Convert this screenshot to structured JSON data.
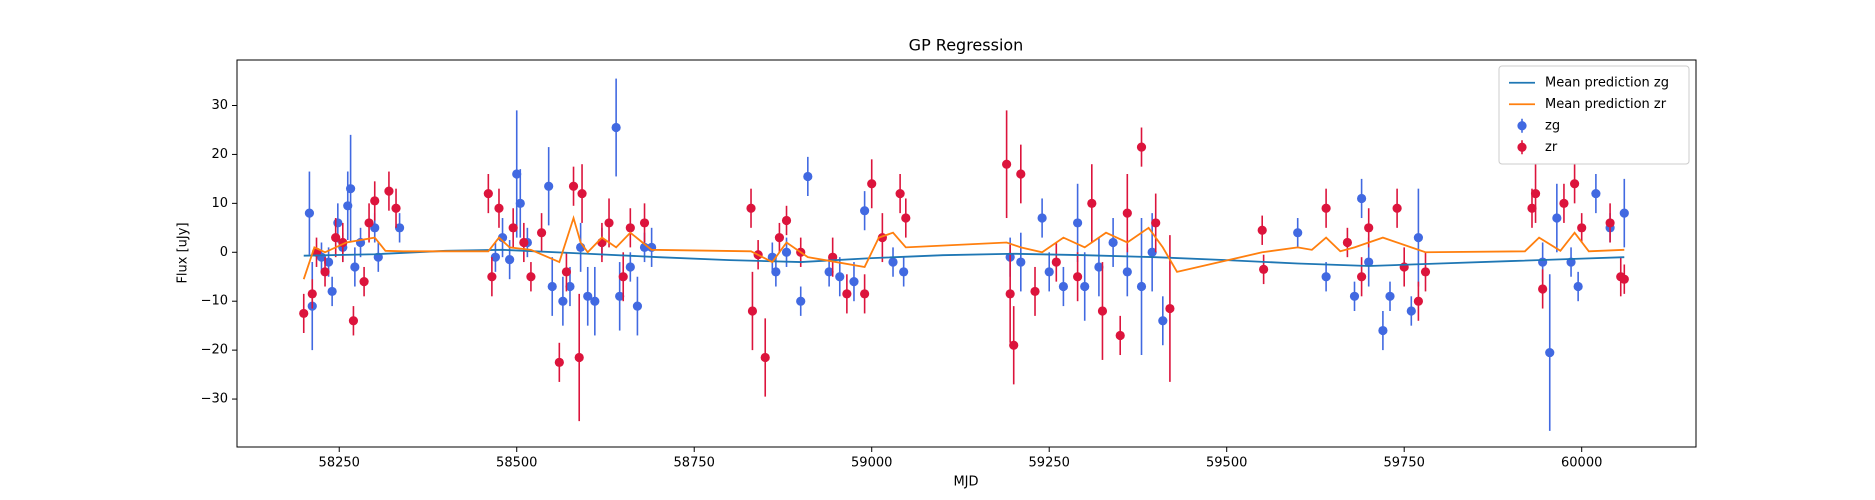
{
  "chart_data": {
    "type": "scatter",
    "title": "GP Regression",
    "x_label": "MJD",
    "y_label": "Flux [uJy]",
    "xlim": [
      58106,
      60161
    ],
    "ylim": [
      -39.8,
      39.3
    ],
    "xticks": [
      58250,
      58500,
      58750,
      59000,
      59250,
      59500,
      59750,
      60000
    ],
    "yticks": [
      {
        "value": -30,
        "label": "−30"
      },
      {
        "value": -20,
        "label": "−20"
      },
      {
        "value": -10,
        "label": "−10"
      },
      0,
      10,
      20,
      30
    ],
    "legend": "upper right",
    "series": [
      {
        "name": "Mean prediction zg",
        "kind": "line",
        "color": "#1f77b4",
        "x": [
          58200,
          58300,
          58400,
          58480,
          58600,
          58700,
          58800,
          58900,
          59000,
          59100,
          59200,
          59300,
          59400,
          59500,
          59600,
          59700,
          59800,
          59900,
          60000,
          60060
        ],
        "values": [
          -0.7,
          -0.4,
          0.3,
          0.5,
          -0.3,
          -1,
          -1.6,
          -2,
          -1.2,
          -0.6,
          -0.3,
          -0.6,
          -1,
          -1.6,
          -2.3,
          -2.8,
          -2.3,
          -1.8,
          -1.3,
          -1
        ]
      },
      {
        "name": "Mean prediction zr",
        "kind": "line",
        "color": "#ff7f0e",
        "x": [
          58200,
          58215,
          58230,
          58260,
          58300,
          58315,
          58340,
          58460,
          58475,
          58490,
          58520,
          58560,
          58580,
          58590,
          58600,
          58620,
          58640,
          58660,
          58690,
          58830,
          58860,
          58880,
          58910,
          58950,
          58990,
          59010,
          59030,
          59048,
          59190,
          59210,
          59240,
          59270,
          59300,
          59330,
          59360,
          59390,
          59410,
          59430,
          59550,
          59600,
          59620,
          59640,
          59660,
          59680,
          59720,
          59760,
          59780,
          59920,
          59940,
          59970,
          59990,
          60010,
          60060
        ],
        "values": [
          -5.5,
          1,
          0,
          2,
          3,
          0.3,
          0.2,
          0.2,
          3,
          1,
          0.5,
          -2,
          7,
          2,
          0,
          3,
          1,
          4,
          0.5,
          0.2,
          -2,
          2,
          -1,
          -2,
          -3,
          3,
          4,
          1,
          2,
          1,
          0,
          3,
          1,
          4,
          2,
          5,
          1,
          -4,
          0,
          1,
          0.5,
          3,
          0.2,
          1,
          3,
          1,
          0,
          0.2,
          3,
          0.3,
          4,
          0.2,
          0.5
        ]
      },
      {
        "name": "zg",
        "kind": "errorbar",
        "color": "#4169e1",
        "x": [
          58208,
          58212,
          58225,
          58235,
          58240,
          58248,
          58255,
          58262,
          58266,
          58272,
          58280,
          58300,
          58305,
          58335,
          58470,
          58480,
          58490,
          58500,
          58505,
          58515,
          58545,
          58550,
          58565,
          58575,
          58590,
          58600,
          58610,
          58620,
          58640,
          58645,
          58660,
          58670,
          58680,
          58690,
          58860,
          58865,
          58880,
          58900,
          58910,
          58940,
          58955,
          58975,
          58990,
          59030,
          59045,
          59195,
          59210,
          59240,
          59250,
          59270,
          59290,
          59300,
          59320,
          59340,
          59360,
          59380,
          59395,
          59410,
          59600,
          59640,
          59680,
          59690,
          59700,
          59720,
          59730,
          59760,
          59770,
          59945,
          59955,
          59965,
          59985,
          59995,
          60020,
          60040,
          60060
        ],
        "values": [
          8,
          -11,
          -1,
          -2,
          -8,
          6,
          1,
          9.5,
          13,
          -3,
          2,
          5,
          -1,
          5,
          -1,
          3,
          -1.5,
          16,
          10,
          2,
          13.5,
          -7,
          -10,
          -7,
          1,
          -9,
          -10,
          2,
          25.5,
          -9,
          -3,
          -11,
          1,
          1,
          -1,
          -4,
          0,
          -10,
          15.5,
          -4,
          -5,
          -6,
          8.5,
          -2,
          -4,
          -1,
          -2,
          7,
          -4,
          -7,
          6,
          -7,
          -3,
          2,
          -4,
          -7,
          0,
          -14,
          4,
          -5,
          -9,
          11,
          -2,
          -16,
          -9,
          -12,
          3,
          -2,
          -20.5,
          7,
          -2,
          -7,
          12,
          5,
          8
        ],
        "errors": [
          8.5,
          9,
          3,
          3,
          3,
          4,
          3,
          7,
          11,
          4,
          3,
          3,
          3,
          3,
          3,
          4,
          4,
          13,
          7,
          3,
          8,
          6,
          5,
          4,
          5,
          6,
          7,
          3,
          10,
          7,
          3,
          6,
          3,
          4,
          3,
          3,
          3,
          3,
          4,
          3,
          4,
          4,
          4,
          3,
          3,
          4,
          6,
          4,
          4,
          4,
          8,
          7,
          6,
          5,
          5,
          14,
          8,
          5,
          3,
          3,
          3,
          4,
          5,
          4,
          3,
          3,
          10,
          4,
          16,
          7,
          3,
          3,
          4,
          3,
          7
        ]
      },
      {
        "name": "zr",
        "kind": "errorbar",
        "color": "#dc143c",
        "x": [
          58200,
          58212,
          58218,
          58230,
          58245,
          58255,
          58270,
          58285,
          58292,
          58300,
          58320,
          58330,
          58460,
          58465,
          58475,
          58495,
          58510,
          58520,
          58535,
          58560,
          58570,
          58580,
          58588,
          58592,
          58620,
          58630,
          58650,
          58660,
          58680,
          58830,
          58832,
          58840,
          58850,
          58870,
          58880,
          58900,
          58945,
          58965,
          58990,
          59000,
          59015,
          59040,
          59048,
          59190,
          59195,
          59200,
          59210,
          59230,
          59260,
          59290,
          59310,
          59325,
          59350,
          59360,
          59380,
          59400,
          59420,
          59550,
          59552,
          59640,
          59670,
          59690,
          59700,
          59740,
          59750,
          59770,
          59780,
          59930,
          59935,
          59945,
          59975,
          59990,
          60000,
          60040,
          60055,
          60060
        ],
        "values": [
          -12.5,
          -8.5,
          0,
          -4,
          3,
          2,
          -14,
          -6,
          6,
          10.5,
          12.5,
          9,
          12,
          -5,
          9,
          5,
          2,
          -5,
          4,
          -22.5,
          -4,
          13.5,
          -21.5,
          12,
          2,
          6,
          -5,
          5,
          6,
          9,
          -12,
          -0.5,
          -21.5,
          3,
          6.5,
          0,
          -1,
          -8.5,
          -8.5,
          14,
          3,
          12,
          7,
          18,
          -8.5,
          -19,
          16,
          -8,
          -2,
          -5,
          10,
          -12,
          -17,
          8,
          21.5,
          6,
          -11.5,
          4.5,
          -3.5,
          9,
          2,
          -5,
          5,
          9,
          -3,
          -10,
          -4,
          9,
          12,
          -7.5,
          10,
          14,
          5,
          6,
          -5,
          -5.5
        ],
        "errors": [
          4,
          3,
          3,
          3,
          4,
          4,
          3,
          3,
          4,
          4,
          4,
          4,
          4,
          4,
          4,
          4,
          4,
          3,
          4,
          4,
          4,
          4,
          13,
          6,
          4,
          5,
          5,
          4,
          4,
          4,
          8,
          3,
          8,
          3,
          3,
          3,
          4,
          4,
          4,
          5,
          5,
          4,
          4,
          11,
          10,
          8,
          6,
          5,
          4,
          5,
          8,
          10,
          4,
          8,
          4,
          6,
          15,
          3,
          3,
          4,
          3,
          4,
          4,
          4,
          4,
          4,
          4,
          4,
          6,
          4,
          4,
          4,
          3,
          4,
          4,
          3
        ]
      }
    ]
  }
}
